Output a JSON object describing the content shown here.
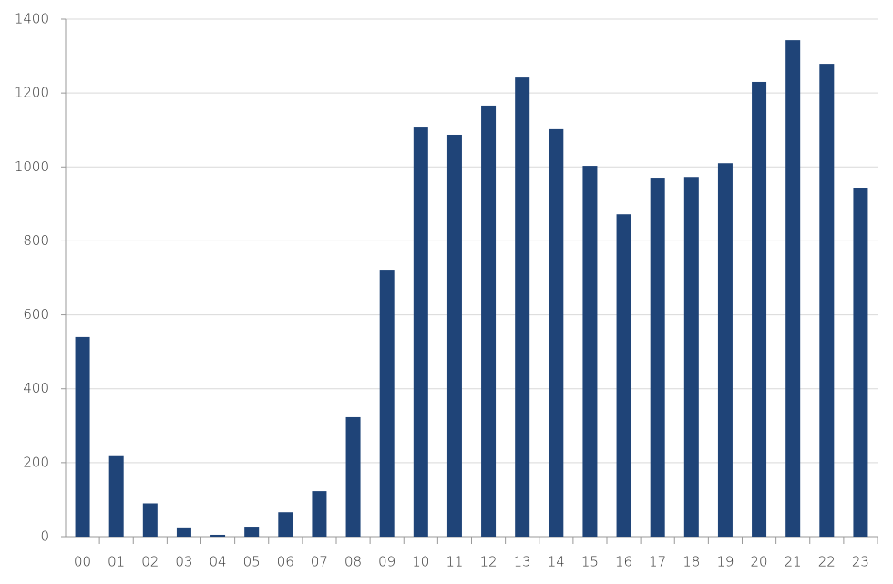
{
  "chart_data": {
    "type": "bar",
    "categories": [
      "00",
      "01",
      "02",
      "03",
      "04",
      "05",
      "06",
      "07",
      "08",
      "09",
      "10",
      "11",
      "12",
      "13",
      "14",
      "15",
      "16",
      "17",
      "18",
      "19",
      "20",
      "21",
      "22",
      "23"
    ],
    "values": [
      540,
      220,
      90,
      25,
      5,
      27,
      66,
      123,
      323,
      722,
      1109,
      1087,
      1166,
      1242,
      1102,
      1003,
      872,
      971,
      973,
      1010,
      1230,
      1343,
      1279,
      944
    ],
    "color": "#1f4478",
    "ylim": [
      0,
      1400
    ],
    "yticks": [
      0,
      200,
      400,
      600,
      800,
      1000,
      1200,
      1400
    ],
    "grid": true
  }
}
